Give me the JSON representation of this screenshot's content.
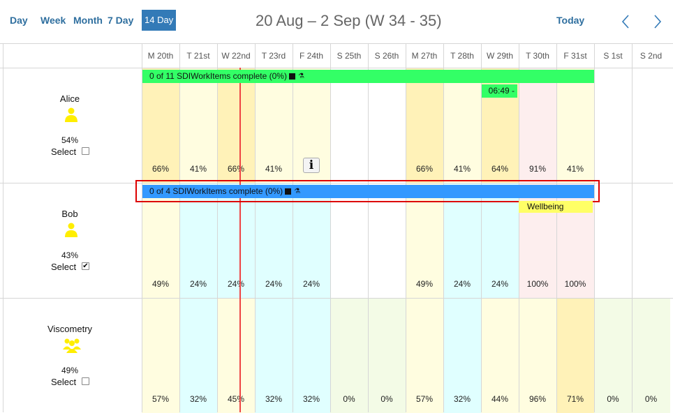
{
  "toolbar": {
    "views": [
      "Day",
      "Week",
      "Month",
      "7 Day",
      "14 Day"
    ],
    "active_view": "14 Day",
    "range_title": "20 Aug – 2 Sep (W 34 - 35)",
    "today_label": "Today",
    "prev_icon": "chevron-left-icon",
    "next_icon": "chevron-right-icon"
  },
  "days": [
    "M 20th",
    "T 21st",
    "W 22nd",
    "T 23rd",
    "F 24th",
    "S 25th",
    "S 26th",
    "M 27th",
    "T 28th",
    "W 29th",
    "T 30th",
    "F 31st",
    "S 1st",
    "S 2nd"
  ],
  "resources": [
    {
      "name": "Alice",
      "icon": "person-icon",
      "utilisation": "54%",
      "select_label": "Select",
      "selected": false,
      "day_pcts": [
        "66%",
        "41%",
        "66%",
        "41%",
        "",
        "",
        "",
        "66%",
        "41%",
        "64%",
        "91%",
        "41%",
        "",
        ""
      ],
      "bar_label": "0 of 11 SDIWorkItems complete (0%)",
      "event_label": "06:49 -",
      "info_icon": "info-icon"
    },
    {
      "name": "Bob",
      "icon": "person-icon",
      "utilisation": "43%",
      "select_label": "Select",
      "selected": true,
      "day_pcts": [
        "49%",
        "24%",
        "24%",
        "24%",
        "24%",
        "",
        "",
        "49%",
        "24%",
        "24%",
        "100%",
        "100%",
        "",
        ""
      ],
      "bar_label": "0 of 4 SDIWorkItems complete (0%)",
      "event_label": "Wellbeing"
    },
    {
      "name": "Viscometry",
      "icon": "group-icon",
      "utilisation": "49%",
      "select_label": "Select",
      "selected": false,
      "day_pcts": [
        "57%",
        "32%",
        "45%",
        "32%",
        "32%",
        "0%",
        "0%",
        "57%",
        "32%",
        "44%",
        "96%",
        "71%",
        "0%",
        "0%"
      ]
    }
  ],
  "colors": {
    "accent": "#337ab7",
    "alice_bar": "#33ff66",
    "bob_bar": "#3399ff",
    "cell_yellow": "#fffde0",
    "cell_orange": "#fff2b8",
    "cell_cyan": "#e0ffff",
    "cell_pink": "#fdeeee",
    "cell_green": "#f3fbe6",
    "now_line": "#ee4444",
    "highlight_box": "#dd0000",
    "person_icon": "#ffee00",
    "event_green": "#33ff66",
    "event_yellow": "#ffff66"
  }
}
